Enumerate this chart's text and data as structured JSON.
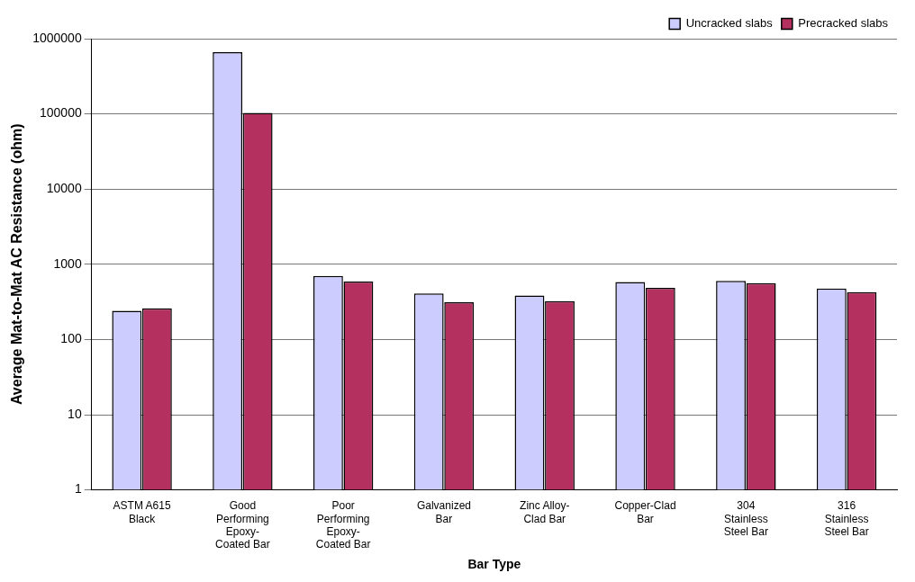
{
  "chart_data": {
    "type": "bar",
    "xlabel": "Bar Type",
    "ylabel": "Average Mat-to-Mat AC Resistance (ohm)",
    "categories": [
      "ASTM A615 Black",
      "Good Performing Epoxy-Coated Bar",
      "Poor Performing Epoxy-Coated Bar",
      "Galvanized Bar",
      "Zinc Alloy-Clad Bar",
      "Copper-Clad Bar",
      "304 Stainless Steel Bar",
      "316 Stainless Steel Bar"
    ],
    "series": [
      {
        "name": "Uncracked slabs",
        "color": "#ccccff",
        "values": [
          240,
          660000,
          700,
          410,
          385,
          580,
          600,
          475
        ]
      },
      {
        "name": "Precracked slabs",
        "color": "#b3305f",
        "values": [
          260,
          103000,
          590,
          313,
          323,
          485,
          560,
          425
        ]
      }
    ],
    "log": true,
    "ylim": [
      1,
      1000000
    ],
    "yticks": [
      1,
      10,
      100,
      1000,
      10000,
      100000,
      1000000
    ],
    "grid": "y",
    "legend": "top right"
  }
}
